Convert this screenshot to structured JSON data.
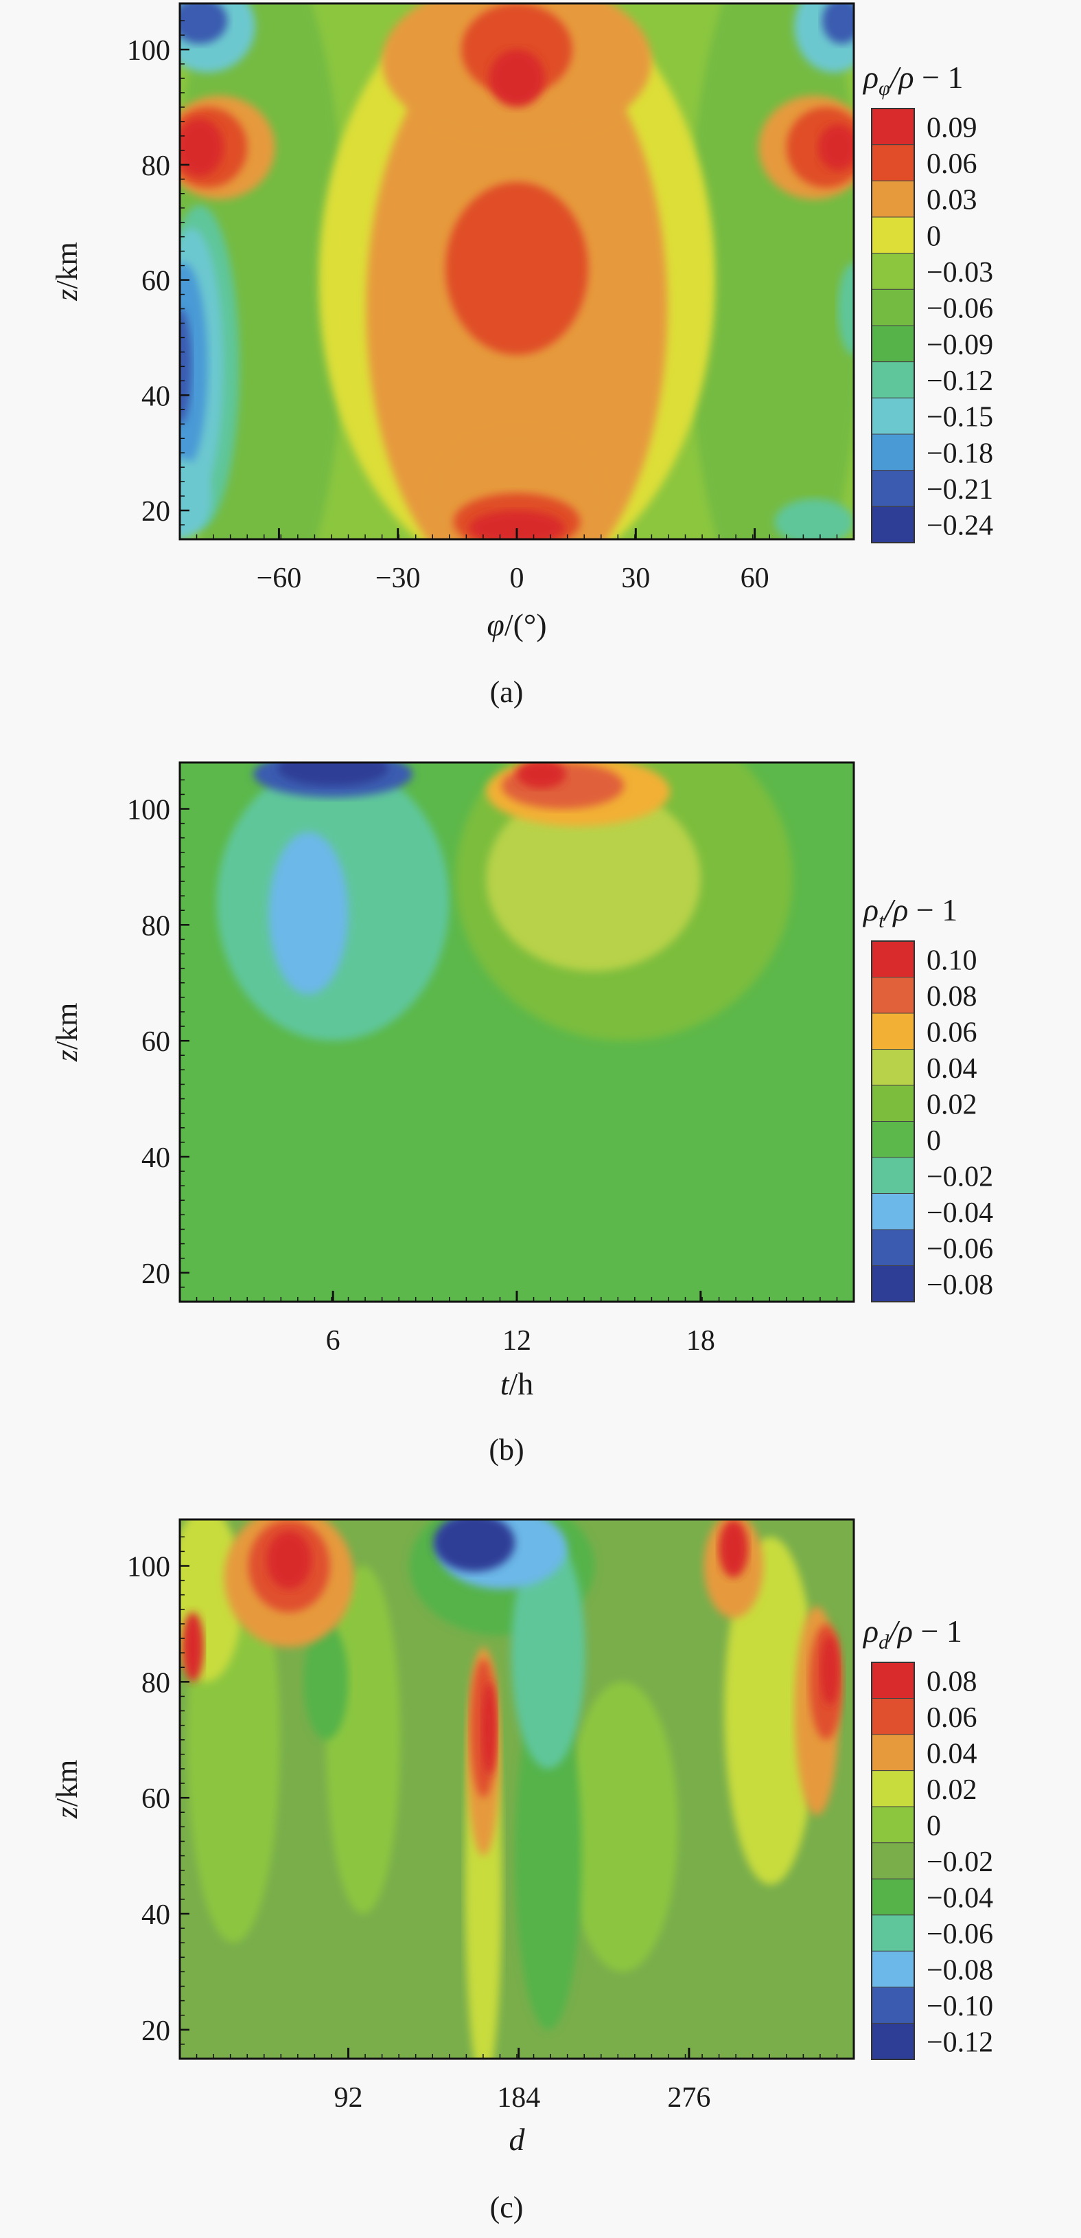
{
  "figure": {
    "background": "#f8f8f8",
    "panels": [
      {
        "id": "a",
        "caption": "(a)",
        "xlabel_var": "φ",
        "xlabel_unit": "/(°)",
        "ylabel": "z/km",
        "legend_title_sub": "φ"
      },
      {
        "id": "b",
        "caption": "(b)",
        "xlabel_var": "t",
        "xlabel_unit": "/h",
        "ylabel": "z/km",
        "legend_title_sub": "t"
      },
      {
        "id": "c",
        "caption": "(c)",
        "xlabel_var": "d",
        "xlabel_unit": "",
        "ylabel": "z/km",
        "legend_title_sub": "d"
      }
    ]
  },
  "chart_data": [
    {
      "type": "heatmap",
      "panel": "a",
      "title": "",
      "xlabel": "φ/(°)",
      "ylabel": "z/km",
      "x_ticks": [
        -60,
        -30,
        0,
        30,
        60
      ],
      "y_ticks": [
        20,
        40,
        60,
        80,
        100
      ],
      "xlim": [
        -85,
        85
      ],
      "ylim": [
        15,
        108
      ],
      "colorbar_label": "ρφ/ρ − 1",
      "colorbar_levels": [
        "0.09",
        "0.06",
        "0.03",
        "0",
        "−0.03",
        "−0.06",
        "−0.09",
        "−0.12",
        "−0.15",
        "−0.18",
        "−0.21",
        "−0.24"
      ],
      "colorbar_colors": [
        "#d92b2b",
        "#e04d28",
        "#e69a3c",
        "#ddde38",
        "#8cc63f",
        "#74bb42",
        "#55b34a",
        "#5ec69a",
        "#6cc8cf",
        "#4a9ad6",
        "#3a5bb0",
        "#2e3d96"
      ],
      "regions": [
        {
          "value": "0.03",
          "desc": "central equatorial band"
        },
        {
          "value": "0.06",
          "at": [
            0,
            97
          ]
        },
        {
          "value": "0.09",
          "at": [
            0,
            95
          ]
        },
        {
          "value": "0.06",
          "at": [
            0,
            62
          ]
        },
        {
          "value": "0.09",
          "at": [
            0,
            17
          ]
        },
        {
          "value": "0.09",
          "at": [
            -80,
            83
          ]
        },
        {
          "value": "0.09",
          "at": [
            80,
            83
          ]
        },
        {
          "value": "−0.21",
          "at": [
            -78,
            104
          ]
        },
        {
          "value": "−0.21",
          "at": [
            80,
            104
          ]
        },
        {
          "value": "−0.21",
          "at": [
            -82,
            45
          ]
        }
      ]
    },
    {
      "type": "heatmap",
      "panel": "b",
      "title": "",
      "xlabel": "t/h",
      "ylabel": "z/km",
      "x_ticks": [
        6,
        12,
        18
      ],
      "y_ticks": [
        20,
        40,
        60,
        80,
        100
      ],
      "xlim": [
        1,
        23
      ],
      "ylim": [
        15,
        108
      ],
      "colorbar_label": "ρt/ρ − 1",
      "colorbar_levels": [
        "0.10",
        "0.08",
        "0.06",
        "0.04",
        "0.02",
        "0",
        "−0.02",
        "−0.04",
        "−0.06",
        "−0.08"
      ],
      "colorbar_colors": [
        "#d92b2b",
        "#e0613a",
        "#f2b035",
        "#b8d24a",
        "#7cbd3e",
        "#5cb84a",
        "#5ec69a",
        "#6cb8e8",
        "#3a5bb0",
        "#2e3d96"
      ],
      "regions": [
        {
          "value": "0",
          "desc": "background"
        },
        {
          "value": "−0.08",
          "at": [
            6,
            106
          ]
        },
        {
          "value": "−0.04",
          "at": [
            5.5,
            82
          ]
        },
        {
          "value": "0.10",
          "at": [
            13,
            105
          ]
        },
        {
          "value": "0.04",
          "at": [
            15,
            85
          ]
        }
      ]
    },
    {
      "type": "heatmap",
      "panel": "c",
      "title": "",
      "xlabel": "d",
      "ylabel": "z/km",
      "x_ticks": [
        92,
        184,
        276
      ],
      "y_ticks": [
        20,
        40,
        60,
        80,
        100
      ],
      "xlim": [
        1,
        365
      ],
      "ylim": [
        15,
        108
      ],
      "colorbar_label": "ρd/ρ − 1",
      "colorbar_levels": [
        "0.08",
        "0.06",
        "0.04",
        "0.02",
        "0",
        "−0.02",
        "−0.04",
        "−0.06",
        "−0.08",
        "−0.10",
        "−0.12"
      ],
      "colorbar_colors": [
        "#d92b2b",
        "#e0502e",
        "#e69a3c",
        "#c8dc3e",
        "#8cc63f",
        "#79ae4b",
        "#55b34a",
        "#5ec69a",
        "#6cb8e8",
        "#3a5bb0",
        "#2e3d96"
      ],
      "regions": [
        {
          "value": "−0.02",
          "desc": "background"
        },
        {
          "value": "0.08",
          "at": [
            60,
            100
          ]
        },
        {
          "value": "−0.12",
          "at": [
            160,
            103
          ]
        },
        {
          "value": "0.08",
          "at": [
            165,
            72
          ]
        },
        {
          "value": "0.08",
          "at": [
            300,
            102
          ]
        },
        {
          "value": "0.08",
          "at": [
            350,
            80
          ]
        }
      ]
    }
  ]
}
